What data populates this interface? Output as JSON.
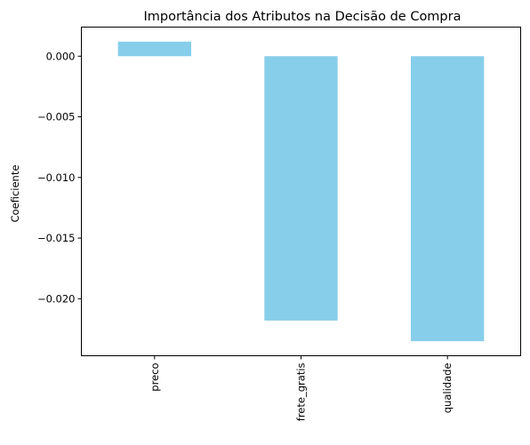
{
  "chart_data": {
    "type": "bar",
    "title": "Importância dos Atributos na Decisão de Compra",
    "xlabel": "",
    "ylabel": "Coeficiente",
    "categories": [
      "preco",
      "frete_gratis",
      "qualidade"
    ],
    "values": [
      0.0012,
      -0.0218,
      -0.0235
    ],
    "ylim": [
      -0.0247,
      0.0024
    ],
    "yticks": [
      0.0,
      -0.005,
      -0.01,
      -0.015,
      -0.02
    ],
    "ytick_labels": [
      "0.000",
      "−0.005",
      "−0.010",
      "−0.015",
      "−0.020"
    ],
    "bar_color": "#87ceeb",
    "grid": false,
    "legend": "none"
  }
}
